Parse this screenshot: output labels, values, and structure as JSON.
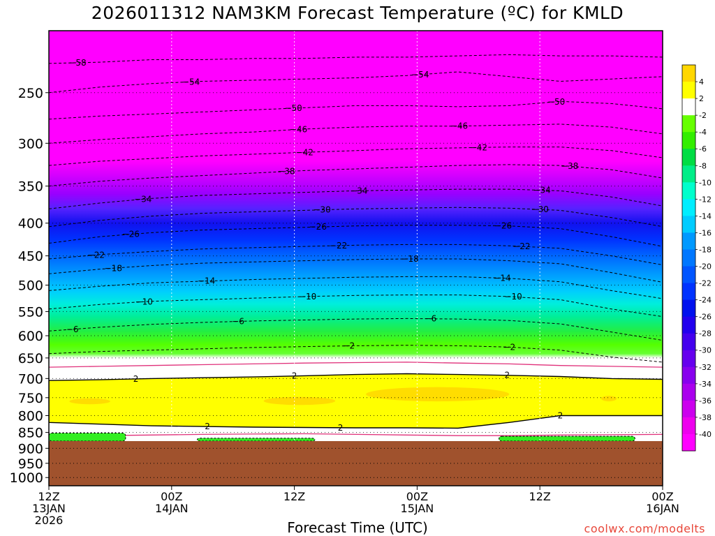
{
  "title": "2026011312 NAM3KM Forecast Temperature (ºC) for KMLD",
  "watermark": "coolwx.com/modelts",
  "chart_data": {
    "type": "contour",
    "title": "2026011312 NAM3KM Forecast Temperature (ºC) for KMLD",
    "xlabel": "Forecast Time (UTC)",
    "ylabel": "",
    "y_scale": "log-pressure",
    "ylim": [
      1030,
      200
    ],
    "xlim": [
      0,
      60
    ],
    "grid": true,
    "y_ticks": [
      250,
      300,
      350,
      400,
      450,
      500,
      550,
      600,
      650,
      700,
      750,
      800,
      850,
      900,
      950,
      1000
    ],
    "x_ticks": [
      {
        "hour": 0,
        "lines": [
          "12Z",
          "13JAN",
          "2026"
        ]
      },
      {
        "hour": 12,
        "lines": [
          "00Z",
          "14JAN"
        ]
      },
      {
        "hour": 24,
        "lines": [
          "12Z"
        ]
      },
      {
        "hour": 36,
        "lines": [
          "00Z",
          "15JAN"
        ]
      },
      {
        "hour": 48,
        "lines": [
          "12Z"
        ]
      },
      {
        "hour": 60,
        "lines": [
          "00Z",
          "16JAN"
        ]
      }
    ],
    "ground_pressure": 877,
    "ground_color": "#a0522d",
    "colorbar": {
      "position": "right",
      "labels": [
        "4",
        "2",
        "-2",
        "-4",
        "-6",
        "-8",
        "-10",
        "-12",
        "-14",
        "-16",
        "-18",
        "-20",
        "-22",
        "-24",
        "-26",
        "-28",
        "-30",
        "-32",
        "-34",
        "-36",
        "-38",
        "-40"
      ],
      "colors": [
        "#ffd700",
        "#ffff00",
        "#ffffff",
        "#66ff00",
        "#33ee00",
        "#00dd44",
        "#00ee88",
        "#00ffcc",
        "#00eeff",
        "#00ccff",
        "#0099ff",
        "#0077ff",
        "#0055ff",
        "#0033ff",
        "#0011ee",
        "#2200ee",
        "#4400ee",
        "#6600ee",
        "#8800ee",
        "#aa00ee",
        "#cc00ee",
        "#ee00ee",
        "#ff00ff"
      ]
    },
    "isotherms": [
      {
        "value": -58,
        "label": "-58",
        "label_hour": 2.8,
        "pressure": [
          225,
          224,
          222,
          222,
          221,
          221,
          220,
          220,
          219,
          218,
          219,
          219,
          220
        ]
      },
      {
        "value": -54,
        "label": "-54",
        "label_hour": 36.3,
        "pressure": [
          250,
          245,
          242,
          240,
          239,
          238,
          237,
          235,
          232,
          236,
          240,
          238,
          236
        ]
      },
      {
        "value": -54,
        "label": "-54",
        "label_hour": 13.9,
        "pressure": [
          250,
          245,
          242,
          240,
          239,
          238,
          237,
          235,
          232,
          236,
          240,
          238,
          236
        ],
        "label_only": true
      },
      {
        "value": -50,
        "label": "-50",
        "label_hour": 23.9,
        "pressure": [
          275,
          272,
          270,
          268,
          266,
          264,
          262,
          262,
          263,
          262,
          258,
          260,
          265
        ]
      },
      {
        "value": -50,
        "label": "-50",
        "label_hour": 49.6,
        "pressure": [
          275,
          272,
          270,
          268,
          266,
          264,
          262,
          262,
          263,
          262,
          258,
          260,
          265
        ],
        "label_only": true
      },
      {
        "value": -46,
        "label": "-46",
        "label_hour": 24.4,
        "pressure": [
          300,
          296,
          293,
          290,
          288,
          285,
          283,
          282,
          282,
          281,
          280,
          283,
          290
        ]
      },
      {
        "value": -46,
        "label": "-46",
        "label_hour": 40.1,
        "pressure": [
          300,
          296,
          293,
          290,
          288,
          285,
          283,
          282,
          282,
          281,
          280,
          283,
          290
        ],
        "label_only": true
      },
      {
        "value": -42,
        "label": "-42",
        "label_hour": 25.0,
        "pressure": [
          325,
          320,
          317,
          314,
          312,
          310,
          308,
          306,
          305,
          304,
          304,
          308,
          316
        ]
      },
      {
        "value": -42,
        "label": "-42",
        "label_hour": 42.0,
        "pressure": [
          325,
          320,
          317,
          314,
          312,
          310,
          308,
          306,
          305,
          304,
          304,
          308,
          316
        ],
        "label_only": true
      },
      {
        "value": -38,
        "label": "-38",
        "label_hour": 23.2,
        "pressure": [
          350,
          344,
          340,
          337,
          334,
          331,
          329,
          327,
          325,
          324,
          325,
          330,
          340
        ]
      },
      {
        "value": -38,
        "label": "-38",
        "label_hour": 50.9,
        "pressure": [
          350,
          344,
          340,
          337,
          334,
          331,
          329,
          327,
          325,
          324,
          325,
          330,
          340
        ],
        "label_only": true
      },
      {
        "value": -34,
        "label": "-34",
        "label_hour": 9.2,
        "pressure": [
          380,
          372,
          366,
          362,
          360,
          358,
          356,
          355,
          354,
          354,
          356,
          364,
          376
        ]
      },
      {
        "value": -34,
        "label": "-34",
        "label_hour": 30.3,
        "pressure": [
          380,
          372,
          366,
          362,
          360,
          358,
          356,
          355,
          354,
          354,
          356,
          364,
          376
        ],
        "label_only": true
      },
      {
        "value": -34,
        "label": "-34",
        "label_hour": 48.2,
        "pressure": [
          380,
          372,
          366,
          362,
          360,
          358,
          356,
          355,
          354,
          354,
          356,
          364,
          376
        ],
        "label_only": true
      },
      {
        "value": -30,
        "label": "-30",
        "label_hour": 26.7,
        "pressure": [
          405,
          396,
          390,
          386,
          384,
          382,
          380,
          379,
          378,
          379,
          382,
          392,
          405
        ]
      },
      {
        "value": -30,
        "label": "-30",
        "label_hour": 48.0,
        "pressure": [
          405,
          396,
          390,
          386,
          384,
          382,
          380,
          379,
          378,
          379,
          382,
          392,
          405
        ],
        "label_only": true
      },
      {
        "value": -26,
        "label": "-26",
        "label_hour": 8.0,
        "pressure": [
          430,
          420,
          414,
          410,
          408,
          406,
          404,
          403,
          403,
          404,
          408,
          420,
          435
        ]
      },
      {
        "value": -26,
        "label": "-26",
        "label_hour": 26.3,
        "pressure": [
          430,
          420,
          414,
          410,
          408,
          406,
          404,
          403,
          403,
          404,
          408,
          420,
          435
        ],
        "label_only": true
      },
      {
        "value": -26,
        "label": "-26",
        "label_hour": 44.4,
        "pressure": [
          430,
          420,
          414,
          410,
          408,
          406,
          404,
          403,
          403,
          404,
          408,
          420,
          435
        ],
        "label_only": true
      },
      {
        "value": -22,
        "label": "-22",
        "label_hour": 4.6,
        "pressure": [
          455,
          448,
          443,
          439,
          437,
          435,
          433,
          432,
          432,
          434,
          438,
          450,
          465
        ]
      },
      {
        "value": -22,
        "label": "-22",
        "label_hour": 28.3,
        "pressure": [
          455,
          448,
          443,
          439,
          437,
          435,
          433,
          432,
          432,
          434,
          438,
          450,
          465
        ],
        "label_only": true
      },
      {
        "value": -22,
        "label": "-22",
        "label_hour": 46.2,
        "pressure": [
          455,
          448,
          443,
          439,
          437,
          435,
          433,
          432,
          432,
          434,
          438,
          450,
          465
        ],
        "label_only": true
      },
      {
        "value": -18,
        "label": "-18",
        "label_hour": 6.3,
        "pressure": [
          480,
          472,
          466,
          462,
          460,
          458,
          456,
          455,
          455,
          458,
          463,
          478,
          495
        ]
      },
      {
        "value": -18,
        "label": "-18",
        "label_hour": 35.3,
        "pressure": [
          480,
          472,
          466,
          462,
          460,
          458,
          456,
          455,
          455,
          458,
          463,
          478,
          495
        ],
        "label_only": true
      },
      {
        "value": -14,
        "label": "-14",
        "label_hour": 15.4,
        "pressure": [
          510,
          502,
          496,
          493,
          490,
          488,
          486,
          485,
          485,
          488,
          494,
          510,
          525
        ]
      },
      {
        "value": -14,
        "label": "-14",
        "label_hour": 44.3,
        "pressure": [
          510,
          502,
          496,
          493,
          490,
          488,
          486,
          485,
          485,
          488,
          494,
          510,
          525
        ],
        "label_only": true
      },
      {
        "value": -10,
        "label": "-10",
        "label_hour": 9.3,
        "pressure": [
          545,
          536,
          530,
          527,
          524,
          521,
          519,
          518,
          518,
          521,
          527,
          545,
          560
        ]
      },
      {
        "value": -10,
        "label": "-10",
        "label_hour": 25.3,
        "pressure": [
          545,
          536,
          530,
          527,
          524,
          521,
          519,
          518,
          518,
          521,
          527,
          545,
          560
        ],
        "label_only": true
      },
      {
        "value": -10,
        "label": "-10",
        "label_hour": 45.4,
        "pressure": [
          545,
          536,
          530,
          527,
          524,
          521,
          519,
          518,
          518,
          521,
          527,
          545,
          560
        ],
        "label_only": true
      },
      {
        "value": -6,
        "label": "-6",
        "label_hour": 2.3,
        "pressure": [
          590,
          582,
          576,
          572,
          569,
          567,
          565,
          564,
          565,
          568,
          575,
          592,
          610
        ]
      },
      {
        "value": -6,
        "label": "-6",
        "label_hour": 18.5,
        "pressure": [
          590,
          582,
          576,
          572,
          569,
          567,
          565,
          564,
          565,
          568,
          575,
          592,
          610
        ],
        "label_only": true
      },
      {
        "value": -6,
        "label": "-6",
        "label_hour": 37.3,
        "pressure": [
          590,
          582,
          576,
          572,
          569,
          567,
          565,
          564,
          565,
          568,
          575,
          592,
          610
        ],
        "label_only": true
      },
      {
        "value": -2,
        "label": "-2",
        "label_hour": 29.3,
        "pressure": [
          640,
          635,
          632,
          629,
          626,
          624,
          622,
          621,
          622,
          625,
          632,
          648,
          660
        ]
      },
      {
        "value": -2,
        "label": "-2",
        "label_hour": 45.0,
        "pressure": [
          640,
          635,
          632,
          629,
          626,
          624,
          622,
          621,
          622,
          625,
          632,
          648,
          660
        ],
        "label_only": true
      }
    ],
    "freezing_layer": {
      "value": 0,
      "line_color": "#e0307a",
      "upper_pressure": [
        672,
        670,
        668,
        666,
        664,
        662,
        661,
        660,
        662,
        664,
        668,
        670,
        672
      ],
      "lower_pressure": [
        862,
        860,
        858,
        856,
        855,
        854,
        856,
        858,
        860,
        860,
        858,
        857,
        856
      ]
    },
    "warm_layer_2C": {
      "value": 2,
      "label": "2",
      "label_hours": [
        8.5,
        24.0,
        44.8,
        15.5,
        50.0,
        28.5
      ],
      "top_pressure": [
        705,
        703,
        700,
        698,
        696,
        693,
        690,
        688,
        690,
        692,
        695,
        700,
        702
      ],
      "bottom_pressure": [
        820,
        825,
        830,
        832,
        834,
        835,
        836,
        836,
        837,
        820,
        800,
        800,
        800
      ]
    },
    "warm_core_4C": {
      "value": 4,
      "regions": [
        {
          "hour_range": [
            2,
            6
          ],
          "pressure_range": [
            752,
            768
          ]
        },
        {
          "hour_range": [
            21,
            28
          ],
          "pressure_range": [
            748,
            770
          ]
        },
        {
          "hour_range": [
            31,
            45
          ],
          "pressure_range": [
            722,
            760
          ]
        },
        {
          "hour_range": [
            54,
            55.5
          ],
          "pressure_range": [
            745,
            760
          ]
        }
      ]
    },
    "low_level_cold": {
      "value": -4,
      "regions": [
        {
          "hour_range": [
            0,
            7.5
          ],
          "pressure_range": [
            852,
            877
          ]
        },
        {
          "hour_range": [
            14.5,
            26
          ],
          "pressure_range": [
            868,
            877
          ]
        },
        {
          "hour_range": [
            44,
            57.3
          ],
          "pressure_range": [
            862,
            877
          ]
        }
      ]
    }
  }
}
